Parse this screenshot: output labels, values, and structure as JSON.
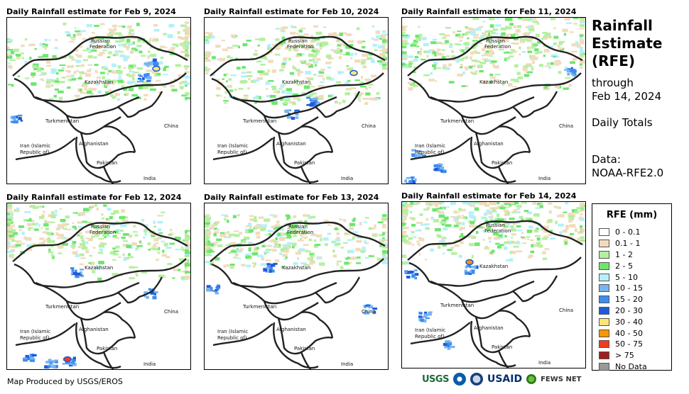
{
  "panels": [
    {
      "title": "Daily Rainfall estimate for Feb 9, 2024"
    },
    {
      "title": "Daily Rainfall estimate for Feb 10, 2024"
    },
    {
      "title": "Daily Rainfall estimate for Feb 11, 2024"
    },
    {
      "title": "Daily Rainfall estimate for Feb 12, 2024"
    },
    {
      "title": "Daily Rainfall estimate for Feb 13, 2024"
    },
    {
      "title": "Daily Rainfall estimate for Feb 14, 2024"
    }
  ],
  "map_labels": {
    "russia_1": "Russian",
    "russia_2": "Federation",
    "kazakhstan": "Kazakhstan",
    "turkmenistan": "Turkmenistan",
    "china": "China",
    "iran_1": "Iran  (Islamic",
    "iran_2": "Republic of)",
    "afghanistan": "Afghanistan",
    "pakistan": "Pakistan",
    "india": "India"
  },
  "sidebar": {
    "title_1": "Rainfall",
    "title_2": "Estimate",
    "title_3": "(RFE)",
    "through": "through",
    "date": "Feb 14, 2024",
    "totals": "Daily Totals",
    "data_label": "Data:",
    "data_source": "NOAA-RFE2.0"
  },
  "legend": {
    "title": "RFE (mm)",
    "items": [
      {
        "label": "0 - 0.1",
        "color": "#ffffff"
      },
      {
        "label": "0.1 - 1",
        "color": "#f0dcbc"
      },
      {
        "label": "1 - 2",
        "color": "#b4f0a0"
      },
      {
        "label": "2 - 5",
        "color": "#6ee66e"
      },
      {
        "label": "5 - 10",
        "color": "#b4f0fa"
      },
      {
        "label": "10 - 15",
        "color": "#78b4f0"
      },
      {
        "label": "15 - 20",
        "color": "#3c8cf0"
      },
      {
        "label": "20 - 30",
        "color": "#1e5adc"
      },
      {
        "label": "30 - 40",
        "color": "#fae678"
      },
      {
        "label": "40 - 50",
        "color": "#fa9600"
      },
      {
        "label": "50 - 75",
        "color": "#f03c1e"
      },
      {
        "label": "> 75",
        "color": "#a01e1e"
      },
      {
        "label": "No Data",
        "color": "#999999"
      }
    ]
  },
  "credit": "Map Produced by USGS/EROS",
  "logos": {
    "usgs": "USGS",
    "usaid": "USAID",
    "fews": "FEWS NET"
  }
}
